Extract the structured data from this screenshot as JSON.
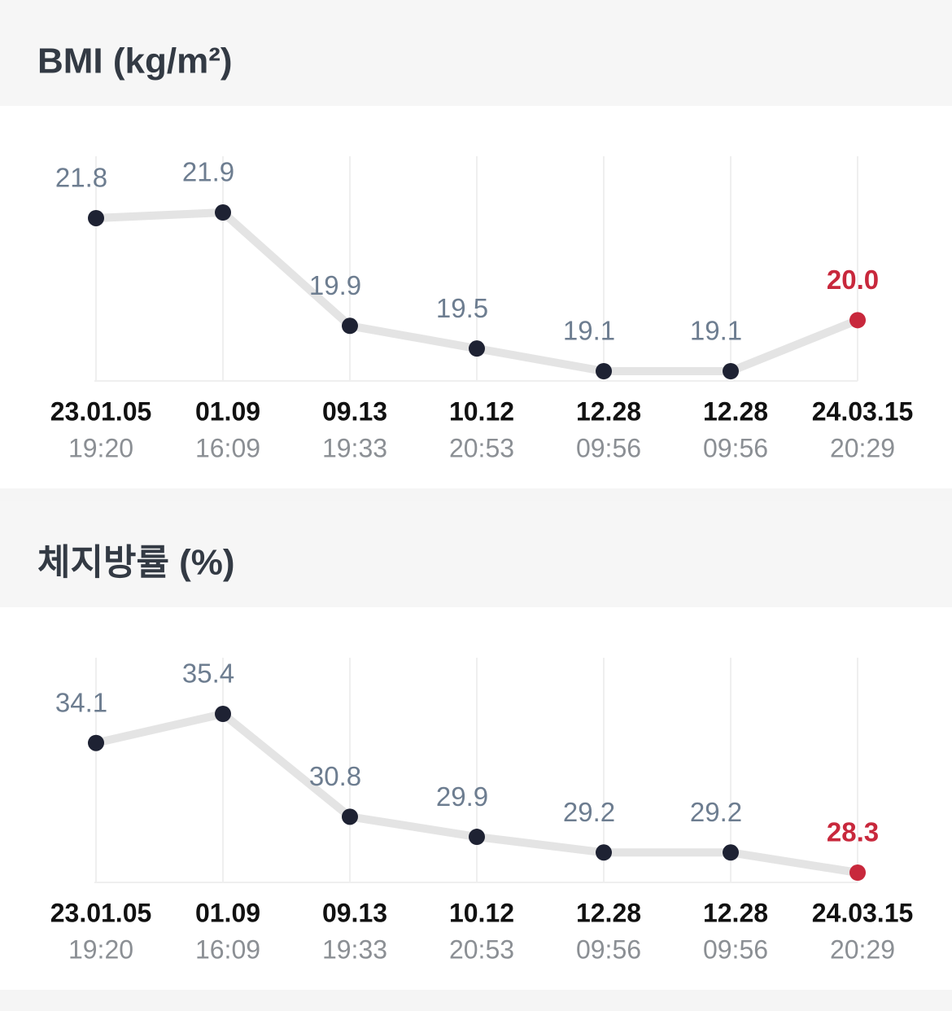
{
  "chart_data": [
    {
      "type": "line",
      "title": "BMI (kg/m²)",
      "categories": [
        "23.01.05",
        "01.09",
        "09.13",
        "10.12",
        "12.28",
        "12.28",
        "24.03.15"
      ],
      "category_times": [
        "19:20",
        "16:09",
        "19:33",
        "20:53",
        "09:56",
        "09:56",
        "20:29"
      ],
      "values": [
        21.8,
        21.9,
        19.9,
        19.5,
        19.1,
        19.1,
        20.0
      ],
      "value_labels": [
        "21.8",
        "21.9",
        "19.9",
        "19.5",
        "19.1",
        "19.1",
        "20.0"
      ],
      "color": "#1e2233",
      "line_color": "#e4e4e4",
      "highlight_color": "#c8283c",
      "grid": true
    },
    {
      "type": "line",
      "title": "체지방률 (%)",
      "categories": [
        "23.01.05",
        "01.09",
        "09.13",
        "10.12",
        "12.28",
        "12.28",
        "24.03.15"
      ],
      "category_times": [
        "19:20",
        "16:09",
        "19:33",
        "20:53",
        "09:56",
        "09:56",
        "20:29"
      ],
      "values": [
        34.1,
        35.4,
        30.8,
        29.9,
        29.2,
        29.2,
        28.3
      ],
      "value_labels": [
        "34.1",
        "35.4",
        "30.8",
        "29.9",
        "29.2",
        "29.2",
        "28.3"
      ],
      "color": "#1e2233",
      "line_color": "#e4e4e4",
      "highlight_color": "#c8283c",
      "grid": true
    }
  ]
}
